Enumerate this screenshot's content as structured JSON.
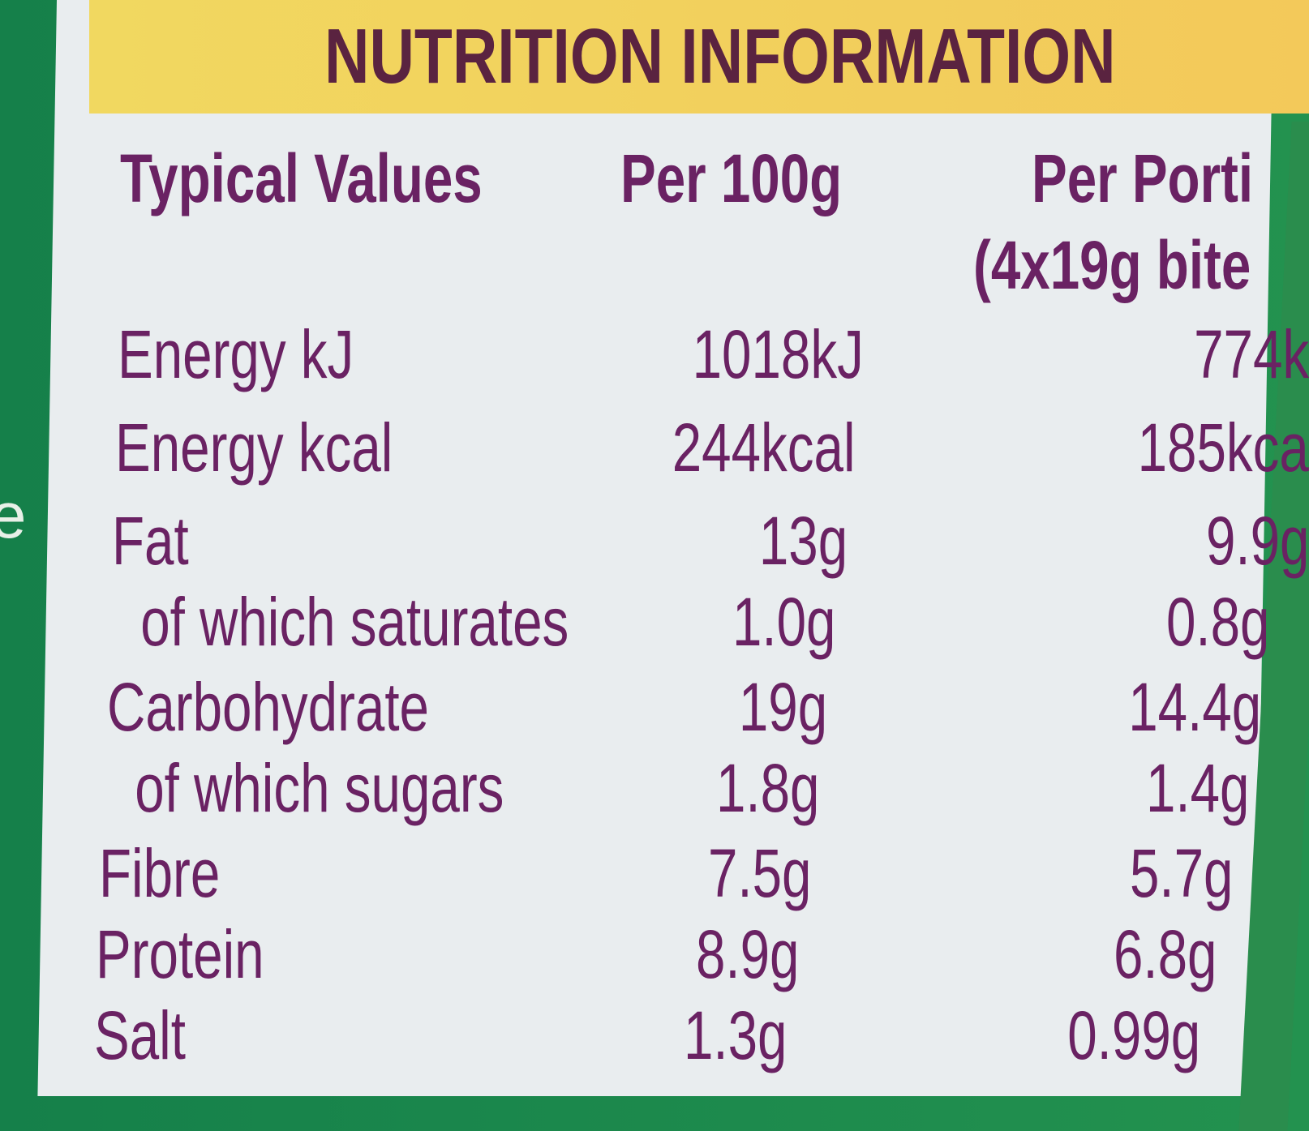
{
  "header": {
    "title": "NUTRITION INFORMATION"
  },
  "margin_text": "e",
  "table": {
    "columns": [
      "Typical Values",
      "Per 100g",
      "Per Porti"
    ],
    "portion_note": "(4x19g bite",
    "rows": [
      [
        "Energy kJ",
        "1018kJ",
        "774k"
      ],
      [
        "Energy kcal",
        "244kcal",
        "185kca"
      ],
      [
        "Fat",
        "13g",
        "9.9g"
      ],
      [
        " of which saturates",
        "1.0g",
        "0.8g"
      ],
      [
        "Carbohydrate",
        "19g",
        "14.4g"
      ],
      [
        " of which sugars",
        "1.8g",
        "1.4g"
      ],
      [
        "Fibre",
        "7.5g",
        "5.7g"
      ],
      [
        "Protein",
        "8.9g",
        "6.8g"
      ],
      [
        "Salt",
        "1.3g",
        "0.99g"
      ]
    ]
  }
}
